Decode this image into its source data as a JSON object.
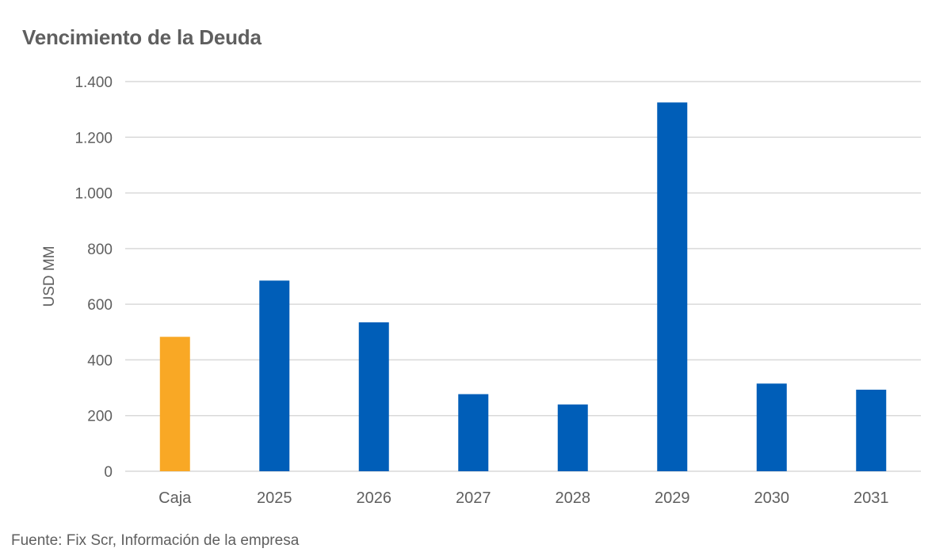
{
  "chart_data": {
    "type": "bar",
    "title": "Vencimiento de la Deuda",
    "xlabel": "",
    "ylabel": "USD MM",
    "categories": [
      "Caja",
      "2025",
      "2026",
      "2027",
      "2028",
      "2029",
      "2030",
      "2031"
    ],
    "values": [
      483,
      685,
      535,
      277,
      240,
      1325,
      315,
      293
    ],
    "bar_colors": [
      "#F9A825",
      "#005EB8",
      "#005EB8",
      "#005EB8",
      "#005EB8",
      "#005EB8",
      "#005EB8",
      "#005EB8"
    ],
    "ylim": [
      0,
      1400
    ],
    "yticks": [
      0,
      200,
      400,
      600,
      800,
      1000,
      1200,
      1400
    ],
    "ytick_labels": [
      "0",
      "200",
      "400",
      "600",
      "800",
      "1.000",
      "1.200",
      "1.400"
    ],
    "grid": true,
    "legend": "none"
  },
  "source": "Fuente: Fix Scr, Información de la empresa"
}
